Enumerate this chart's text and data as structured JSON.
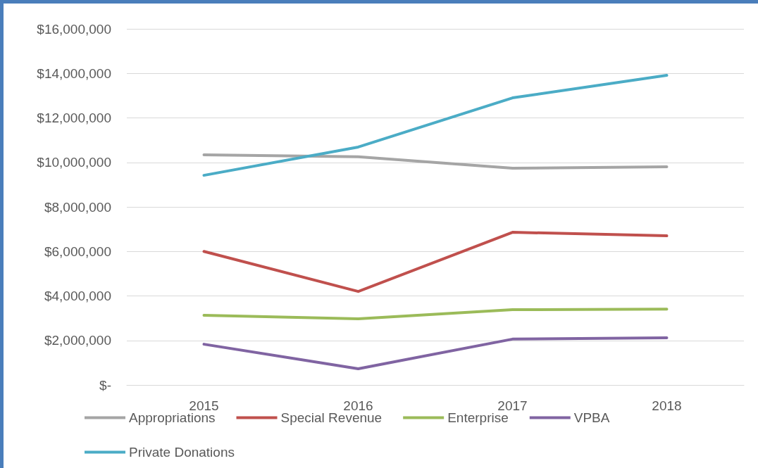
{
  "chart_data": {
    "type": "line",
    "categories": [
      "2015",
      "2016",
      "2017",
      "2018"
    ],
    "series": [
      {
        "name": "Appropriations",
        "color": "#a5a5a5",
        "values": [
          10340000,
          10250000,
          9740000,
          9800000
        ]
      },
      {
        "name": "Special Revenue",
        "color": "#c0504d",
        "values": [
          6000000,
          4200000,
          6860000,
          6700000
        ]
      },
      {
        "name": "Enterprise",
        "color": "#9bbb59",
        "values": [
          3130000,
          2970000,
          3380000,
          3410000
        ]
      },
      {
        "name": "VPBA",
        "color": "#8064a2",
        "values": [
          1830000,
          730000,
          2060000,
          2120000
        ]
      },
      {
        "name": "Private Donations",
        "color": "#4bacc6",
        "values": [
          9420000,
          10690000,
          12900000,
          13910000
        ]
      }
    ],
    "ylim": [
      0,
      16000000
    ],
    "yticks": [
      {
        "value": 0,
        "label": "$-"
      },
      {
        "value": 2000000,
        "label": "$2,000,000"
      },
      {
        "value": 4000000,
        "label": "$4,000,000"
      },
      {
        "value": 6000000,
        "label": "$6,000,000"
      },
      {
        "value": 8000000,
        "label": "$8,000,000"
      },
      {
        "value": 10000000,
        "label": "$10,000,000"
      },
      {
        "value": 12000000,
        "label": "$12,000,000"
      },
      {
        "value": 14000000,
        "label": "$14,000,000"
      },
      {
        "value": 16000000,
        "label": "$16,000,000"
      }
    ],
    "grid": "y",
    "legend": "bottom",
    "marker": "none",
    "line_style": "solid"
  }
}
